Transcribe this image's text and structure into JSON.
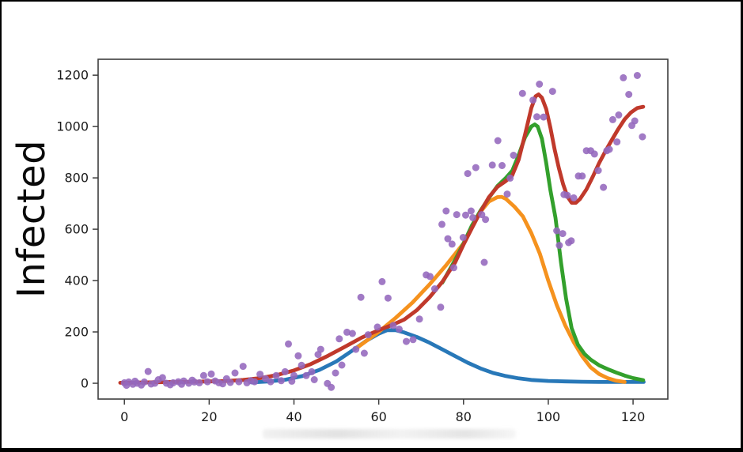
{
  "figure": {
    "ylabel": "Infected"
  },
  "chart_data": {
    "type": "scatter",
    "title": "",
    "xlabel": "",
    "ylabel": "Infected",
    "x_ticks": [
      0,
      20,
      40,
      60,
      80,
      100,
      120
    ],
    "y_ticks": [
      0,
      200,
      400,
      600,
      800,
      1000,
      1200
    ],
    "xlim": [
      -6.2,
      128.2
    ],
    "ylim": [
      -61.5,
      1262
    ],
    "grid": false,
    "legend": "none",
    "axis_color": "#3d3d3d",
    "tick_label_color": "#1a1a1a",
    "scatter": {
      "name": "observed-daily-infected",
      "color": "#9468bd",
      "marker": "circle",
      "points": [
        [
          0,
          2
        ],
        [
          0.5,
          -8
        ],
        [
          1,
          5
        ],
        [
          2,
          -4
        ],
        [
          2.5,
          8
        ],
        [
          3,
          0
        ],
        [
          4,
          -7
        ],
        [
          4.7,
          5
        ],
        [
          5.6,
          46
        ],
        [
          6.3,
          -3
        ],
        [
          7.2,
          0
        ],
        [
          8,
          14
        ],
        [
          9,
          22
        ],
        [
          9.9,
          0
        ],
        [
          10.8,
          -6
        ],
        [
          11.5,
          2
        ],
        [
          12.7,
          6
        ],
        [
          13.5,
          -4
        ],
        [
          14,
          9
        ],
        [
          15.2,
          0
        ],
        [
          16,
          12
        ],
        [
          16.5,
          5
        ],
        [
          17.7,
          2
        ],
        [
          18.7,
          30
        ],
        [
          19.6,
          6
        ],
        [
          20.5,
          36
        ],
        [
          21.4,
          9
        ],
        [
          22.3,
          2
        ],
        [
          23.2,
          -2
        ],
        [
          24.1,
          18
        ],
        [
          25,
          3
        ],
        [
          26.1,
          40
        ],
        [
          27,
          6
        ],
        [
          28,
          66
        ],
        [
          28.9,
          2
        ],
        [
          29.8,
          10
        ],
        [
          30.7,
          6
        ],
        [
          32,
          35
        ],
        [
          33.3,
          18
        ],
        [
          34.5,
          6
        ],
        [
          35.8,
          30
        ],
        [
          37,
          10
        ],
        [
          37.9,
          45
        ],
        [
          38.7,
          153
        ],
        [
          39.5,
          8
        ],
        [
          40,
          30
        ],
        [
          41,
          107
        ],
        [
          41.8,
          70
        ],
        [
          42.9,
          30
        ],
        [
          44.2,
          45
        ],
        [
          44.8,
          14
        ],
        [
          45.7,
          112
        ],
        [
          46.3,
          132
        ],
        [
          47.9,
          -1
        ],
        [
          48.8,
          -16
        ],
        [
          49.8,
          40
        ],
        [
          50.7,
          173
        ],
        [
          51.3,
          71
        ],
        [
          52.5,
          199
        ],
        [
          53.8,
          194
        ],
        [
          54.6,
          132
        ],
        [
          55.8,
          335
        ],
        [
          56.6,
          117
        ],
        [
          57.5,
          189
        ],
        [
          59.7,
          219
        ],
        [
          60.8,
          396
        ],
        [
          62.2,
          332
        ],
        [
          63.4,
          225
        ],
        [
          64.8,
          211
        ],
        [
          66.5,
          163
        ],
        [
          68.1,
          170
        ],
        [
          69.6,
          250
        ],
        [
          71.2,
          422
        ],
        [
          72.1,
          416
        ],
        [
          73.2,
          368
        ],
        [
          74.6,
          296
        ],
        [
          74.9,
          619
        ],
        [
          75.9,
          671
        ],
        [
          76.3,
          563
        ],
        [
          77.3,
          542
        ],
        [
          77.7,
          450
        ],
        [
          78.4,
          657
        ],
        [
          79.9,
          568
        ],
        [
          80.5,
          655
        ],
        [
          81,
          817
        ],
        [
          81.8,
          671
        ],
        [
          82.2,
          645
        ],
        [
          82.9,
          840
        ],
        [
          84.3,
          657
        ],
        [
          84.9,
          471
        ],
        [
          85.2,
          638
        ],
        [
          86.8,
          850
        ],
        [
          88.1,
          945
        ],
        [
          89.1,
          848
        ],
        [
          90.3,
          737
        ],
        [
          91,
          799
        ],
        [
          91.8,
          888
        ],
        [
          93.9,
          1129
        ],
        [
          96.4,
          1103
        ],
        [
          97.3,
          1038
        ],
        [
          97.9,
          1165
        ],
        [
          98.9,
          1037
        ],
        [
          101,
          1137
        ],
        [
          102,
          594
        ],
        [
          102.6,
          537
        ],
        [
          103.4,
          583
        ],
        [
          103.7,
          735
        ],
        [
          104.5,
          732
        ],
        [
          104.8,
          548
        ],
        [
          105.4,
          555
        ],
        [
          106,
          722
        ],
        [
          107.1,
          807
        ],
        [
          108,
          807
        ],
        [
          109,
          906
        ],
        [
          110,
          906
        ],
        [
          110.9,
          893
        ],
        [
          111.8,
          829
        ],
        [
          113,
          763
        ],
        [
          113.8,
          906
        ],
        [
          114.4,
          911
        ],
        [
          115.2,
          1027
        ],
        [
          116.2,
          940
        ],
        [
          116.6,
          1045
        ],
        [
          117.7,
          1190
        ],
        [
          119,
          1125
        ],
        [
          119.7,
          1004
        ],
        [
          120.4,
          1022
        ],
        [
          121,
          1199
        ],
        [
          122.2,
          960
        ]
      ]
    },
    "series": [
      {
        "name": "wave-1-component",
        "color": "#2878b8",
        "points": [
          [
            30,
            3
          ],
          [
            34,
            7
          ],
          [
            38,
            14
          ],
          [
            42,
            28
          ],
          [
            46,
            52
          ],
          [
            50,
            85
          ],
          [
            54,
            130
          ],
          [
            57,
            165
          ],
          [
            60,
            193
          ],
          [
            62,
            207
          ],
          [
            64,
            207
          ],
          [
            66,
            198
          ],
          [
            69,
            180
          ],
          [
            72,
            158
          ],
          [
            75,
            132
          ],
          [
            78,
            106
          ],
          [
            81,
            80
          ],
          [
            84,
            58
          ],
          [
            87,
            40
          ],
          [
            90,
            28
          ],
          [
            93,
            19
          ],
          [
            96,
            13
          ],
          [
            100,
            9
          ],
          [
            104,
            7
          ],
          [
            108,
            6
          ],
          [
            112,
            5
          ],
          [
            116,
            5
          ],
          [
            120,
            5
          ],
          [
            122.5,
            5
          ]
        ]
      },
      {
        "name": "wave-2-component",
        "color": "#f5921e",
        "points": [
          [
            55,
            140
          ],
          [
            60,
            200
          ],
          [
            64,
            255
          ],
          [
            68,
            315
          ],
          [
            72,
            385
          ],
          [
            76,
            462
          ],
          [
            80,
            545
          ],
          [
            82,
            608
          ],
          [
            84,
            668
          ],
          [
            86,
            708
          ],
          [
            88,
            725
          ],
          [
            89,
            726
          ],
          [
            90,
            718
          ],
          [
            92,
            688
          ],
          [
            94,
            650
          ],
          [
            96,
            585
          ],
          [
            98,
            505
          ],
          [
            100,
            400
          ],
          [
            102,
            305
          ],
          [
            104,
            225
          ],
          [
            106,
            160
          ],
          [
            108,
            105
          ],
          [
            110,
            62
          ],
          [
            112,
            36
          ],
          [
            114,
            20
          ],
          [
            116,
            10
          ],
          [
            118,
            5
          ]
        ]
      },
      {
        "name": "wave-3-component",
        "color": "#33a02c",
        "points": [
          [
            75,
            392
          ],
          [
            78,
            480
          ],
          [
            80,
            545
          ],
          [
            82,
            615
          ],
          [
            84,
            672
          ],
          [
            86,
            722
          ],
          [
            88,
            768
          ],
          [
            90,
            800
          ],
          [
            91.5,
            828
          ],
          [
            93,
            888
          ],
          [
            94.5,
            958
          ],
          [
            96,
            1000
          ],
          [
            96.8,
            1008
          ],
          [
            97.5,
            1000
          ],
          [
            98.5,
            952
          ],
          [
            99.5,
            858
          ],
          [
            100.5,
            752
          ],
          [
            101.7,
            645
          ],
          [
            103,
            470
          ],
          [
            104.2,
            330
          ],
          [
            105.5,
            215
          ],
          [
            107,
            150
          ],
          [
            108.5,
            115
          ],
          [
            110,
            92
          ],
          [
            112,
            70
          ],
          [
            114,
            55
          ],
          [
            116,
            42
          ],
          [
            118,
            30
          ],
          [
            120,
            20
          ],
          [
            122.4,
            12
          ]
        ]
      },
      {
        "name": "total-fit",
        "color": "#c0392b",
        "points": [
          [
            -1,
            2
          ],
          [
            4,
            3
          ],
          [
            8,
            4
          ],
          [
            12,
            5
          ],
          [
            16,
            6
          ],
          [
            20,
            7
          ],
          [
            24,
            9
          ],
          [
            28,
            13
          ],
          [
            32,
            20
          ],
          [
            36,
            32
          ],
          [
            40,
            50
          ],
          [
            44,
            75
          ],
          [
            48,
            107
          ],
          [
            52,
            142
          ],
          [
            56,
            178
          ],
          [
            60,
            207
          ],
          [
            63,
            226
          ],
          [
            66,
            248
          ],
          [
            69,
            285
          ],
          [
            72,
            335
          ],
          [
            75,
            395
          ],
          [
            78,
            470
          ],
          [
            80,
            540
          ],
          [
            82,
            605
          ],
          [
            84,
            668
          ],
          [
            86,
            725
          ],
          [
            88,
            765
          ],
          [
            90,
            788
          ],
          [
            91.5,
            810
          ],
          [
            93,
            870
          ],
          [
            94.5,
            968
          ],
          [
            96,
            1072
          ],
          [
            97,
            1118
          ],
          [
            97.7,
            1125
          ],
          [
            98.5,
            1112
          ],
          [
            99.5,
            1068
          ],
          [
            100.5,
            995
          ],
          [
            101.5,
            910
          ],
          [
            102.5,
            838
          ],
          [
            103.5,
            775
          ],
          [
            104.5,
            728
          ],
          [
            105.5,
            703
          ],
          [
            106.5,
            703
          ],
          [
            107.5,
            718
          ],
          [
            109,
            755
          ],
          [
            110.5,
            805
          ],
          [
            112,
            858
          ],
          [
            113.5,
            905
          ],
          [
            115,
            948
          ],
          [
            116.5,
            990
          ],
          [
            118,
            1028
          ],
          [
            119.5,
            1055
          ],
          [
            121,
            1072
          ],
          [
            122.4,
            1077
          ]
        ]
      }
    ]
  }
}
